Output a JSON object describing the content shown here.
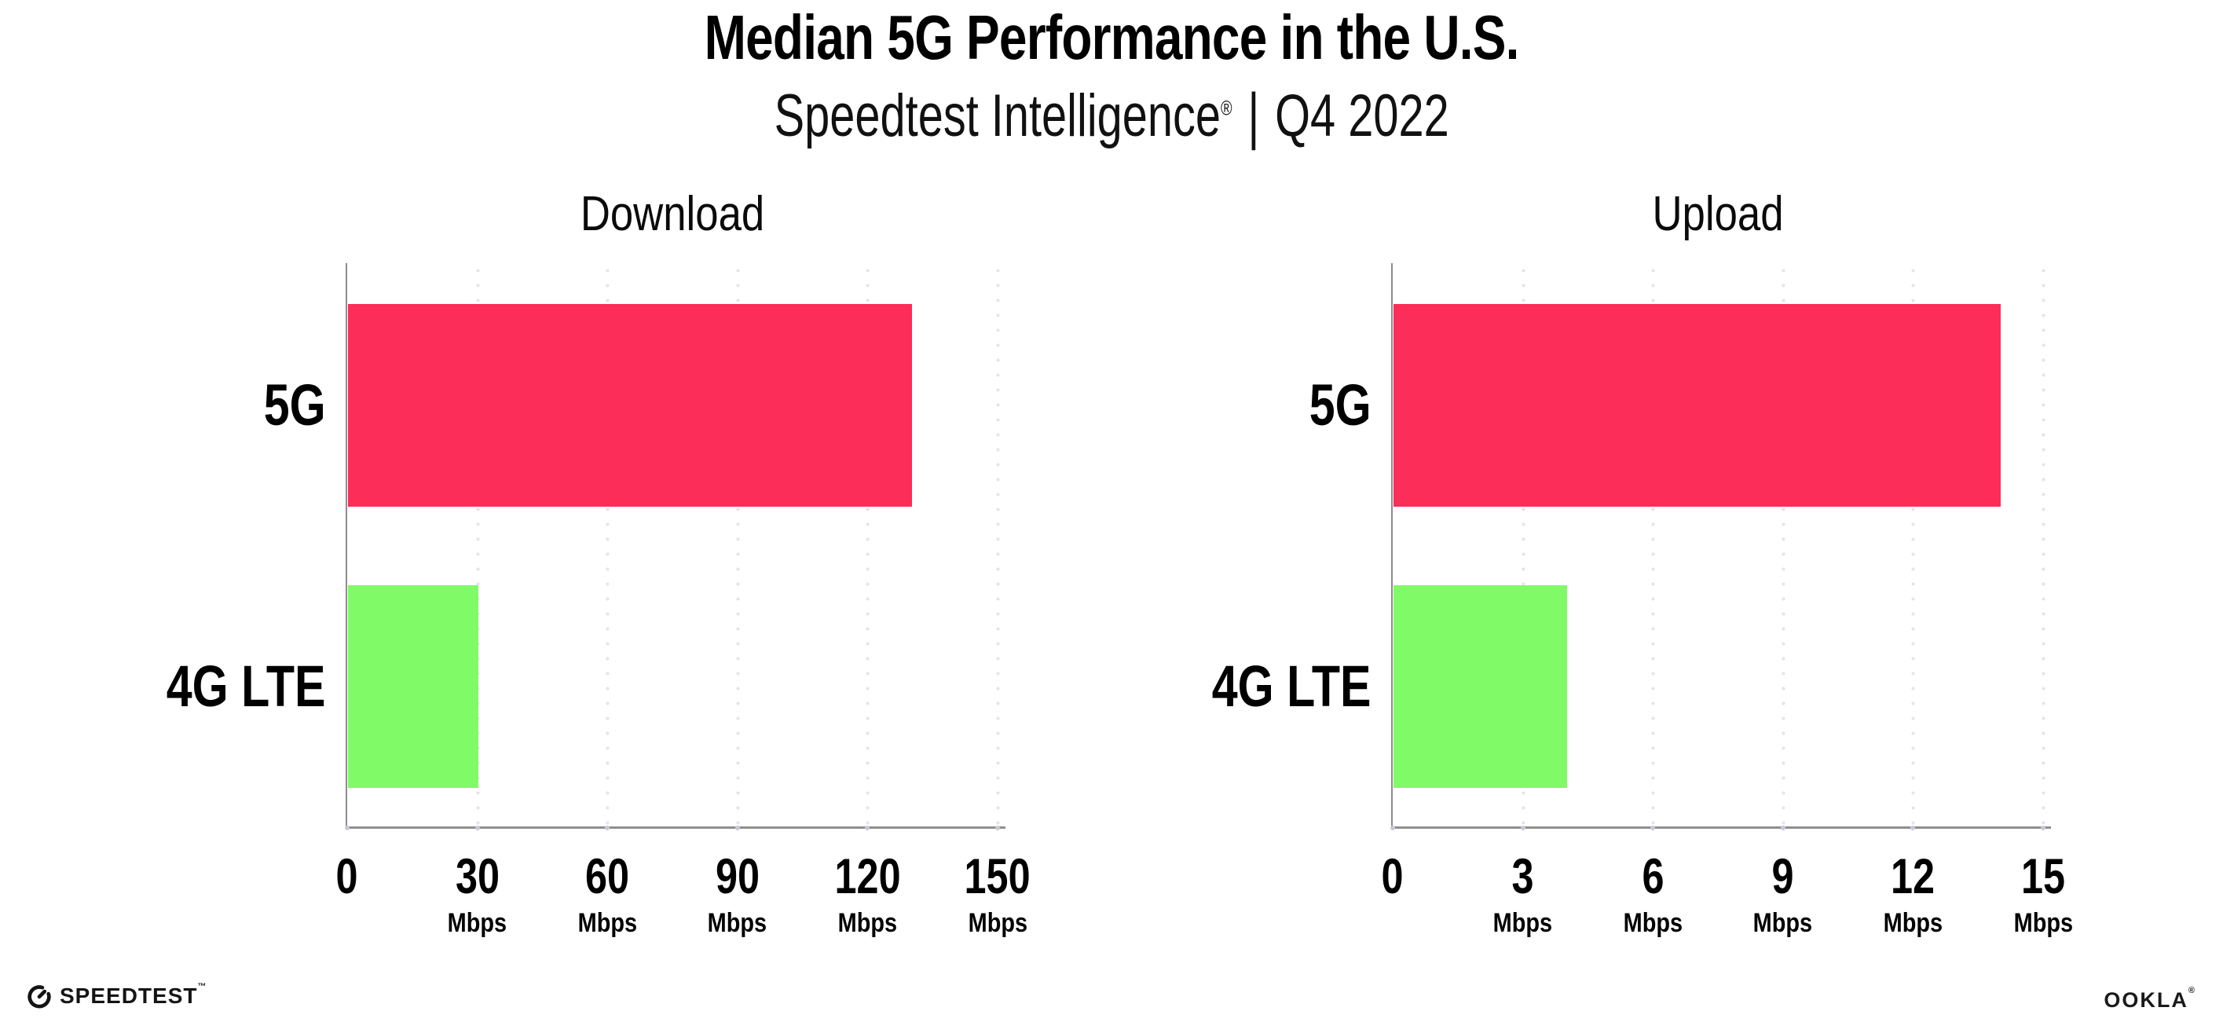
{
  "header": {
    "title": "Median 5G Performance in the U.S.",
    "subtitle": {
      "brand": "Speedtest Intelligence",
      "registered_mark": "®",
      "separator": "|",
      "period": "Q4 2022"
    }
  },
  "chart_data": [
    {
      "type": "bar",
      "orientation": "horizontal",
      "title": "Download",
      "categories": [
        "5G",
        "4G LTE"
      ],
      "values": [
        130,
        30
      ],
      "unit": "Mbps",
      "xlim": [
        0,
        150
      ],
      "xticks": [
        0,
        30,
        60,
        90,
        120,
        150
      ],
      "bar_colors": [
        "#FC2D58",
        "#80FA66"
      ],
      "grid": "vertical-dotted",
      "legend": "none"
    },
    {
      "type": "bar",
      "orientation": "horizontal",
      "title": "Upload",
      "categories": [
        "5G",
        "4G LTE"
      ],
      "values": [
        14,
        4
      ],
      "unit": "Mbps",
      "xlim": [
        0,
        15
      ],
      "xticks": [
        0,
        3,
        6,
        9,
        12,
        15
      ],
      "bar_colors": [
        "#FC2D58",
        "#80FA66"
      ],
      "grid": "vertical-dotted",
      "legend": "none"
    }
  ],
  "style_colors": {
    "bar_5g": "#FC2D58",
    "bar_4g_lte": "#80FA66",
    "axis": "#8f8f8f",
    "gridline_dot": "#e3e3ec",
    "tick_dot": "#c9c9d5",
    "text": "#000000"
  },
  "footer": {
    "speedtest": {
      "label": "SPEEDTEST",
      "trademark": "™"
    },
    "ookla": {
      "label": "OOKLA",
      "registered_mark": "®"
    }
  }
}
